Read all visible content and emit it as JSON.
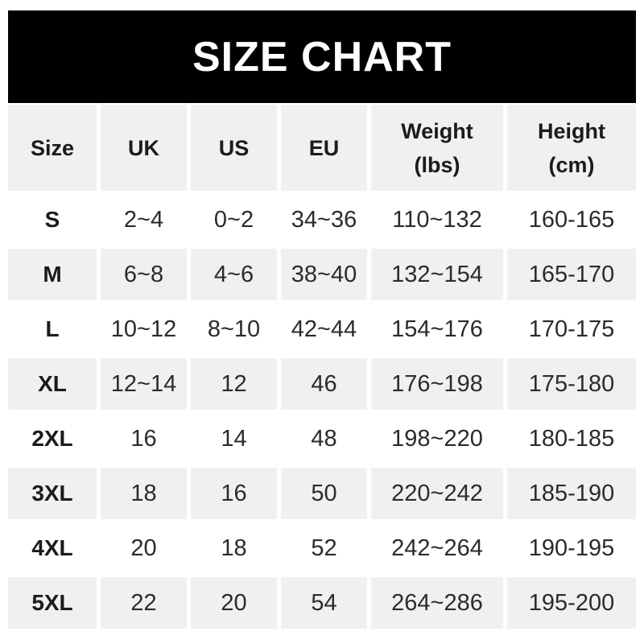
{
  "banner": {
    "title": "SIZE CHART"
  },
  "colors": {
    "page_bg": "#ffffff",
    "banner_bg": "#000000",
    "banner_text": "#ffffff",
    "row_bg": "#ffffff",
    "row_alt_bg": "#f0f0f0",
    "header_text": "#1b1b1b",
    "cell_text": "#2b2b2b"
  },
  "table": {
    "columns": [
      {
        "line1": "Size",
        "line2": ""
      },
      {
        "line1": "UK",
        "line2": ""
      },
      {
        "line1": "US",
        "line2": ""
      },
      {
        "line1": "EU",
        "line2": ""
      },
      {
        "line1": "Weight",
        "line2": "(lbs)"
      },
      {
        "line1": "Height",
        "line2": "(cm)"
      }
    ],
    "column_keys": [
      "size",
      "uk",
      "us",
      "eu",
      "weight",
      "height"
    ]
  },
  "chart_data": {
    "type": "table",
    "title": "SIZE CHART",
    "columns": [
      "Size",
      "UK",
      "US",
      "EU",
      "Weight (lbs)",
      "Height (cm)"
    ],
    "rows": [
      [
        "S",
        "2~4",
        "0~2",
        "34~36",
        "110~132",
        "160-165"
      ],
      [
        "M",
        "6~8",
        "4~6",
        "38~40",
        "132~154",
        "165-170"
      ],
      [
        "L",
        "10~12",
        "8~10",
        "42~44",
        "154~176",
        "170-175"
      ],
      [
        "XL",
        "12~14",
        "12",
        "46",
        "176~198",
        "175-180"
      ],
      [
        "2XL",
        "16",
        "14",
        "48",
        "198~220",
        "180-185"
      ],
      [
        "3XL",
        "18",
        "16",
        "50",
        "220~242",
        "185-190"
      ],
      [
        "4XL",
        "20",
        "18",
        "52",
        "242~264",
        "190-195"
      ],
      [
        "5XL",
        "22",
        "20",
        "54",
        "264~286",
        "195-200"
      ]
    ],
    "layout": {
      "header_fill": "#f0f0f0",
      "alternating_row_fills": [
        "#ffffff",
        "#f0f0f0"
      ],
      "banner_fill": "#000000"
    }
  }
}
